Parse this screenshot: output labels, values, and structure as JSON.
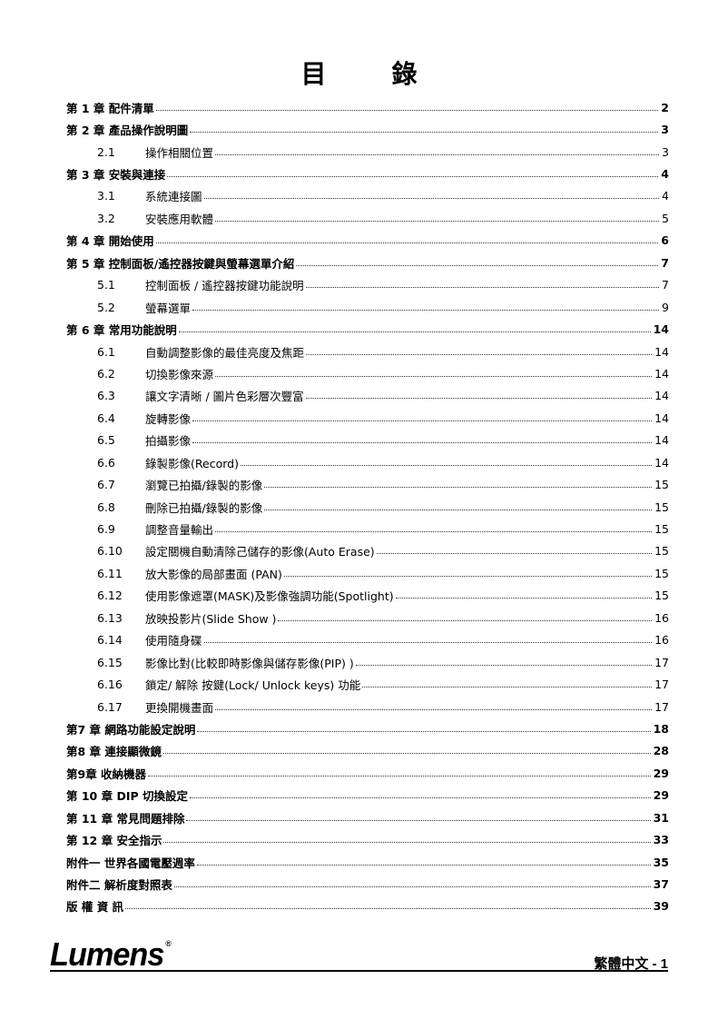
{
  "title": "目　錄",
  "toc": [
    {
      "level": 1,
      "label": "第 1 章 配件清單",
      "page": "2"
    },
    {
      "level": 1,
      "label": "第 2 章 產品操作說明圖",
      "page": "3"
    },
    {
      "level": 2,
      "num": "2.1",
      "label": "操作相關位置",
      "page": "3"
    },
    {
      "level": 1,
      "label": "第 3 章 安裝與連接",
      "page": "4"
    },
    {
      "level": 2,
      "num": "3.1",
      "label": "系統連接圖",
      "page": "4"
    },
    {
      "level": 2,
      "num": "3.2",
      "label": "安裝應用軟體",
      "page": "5"
    },
    {
      "level": 1,
      "label": "第 4 章 開始使用",
      "page": "6"
    },
    {
      "level": 1,
      "label": "第 5 章 控制面板/遙控器按鍵與螢幕選單介紹",
      "page": "7"
    },
    {
      "level": 2,
      "num": "5.1",
      "label": "控制面板 / 遙控器按鍵功能說明",
      "page": "7"
    },
    {
      "level": 2,
      "num": "5.2",
      "label": "螢幕選單",
      "page": "9"
    },
    {
      "level": 1,
      "label": "第 6 章 常用功能說明",
      "page": "14"
    },
    {
      "level": 2,
      "num": "6.1",
      "label": "自動調整影像的最佳亮度及焦距",
      "page": "14"
    },
    {
      "level": 2,
      "num": "6.2",
      "label": "切換影像來源",
      "page": "14"
    },
    {
      "level": 2,
      "num": "6.3",
      "label": "讓文字清晰 / 圖片色彩層次豐富",
      "page": "14"
    },
    {
      "level": 2,
      "num": "6.4",
      "label": "旋轉影像",
      "page": "14"
    },
    {
      "level": 2,
      "num": "6.5",
      "label": "拍攝影像",
      "page": "14"
    },
    {
      "level": 2,
      "num": "6.6",
      "label": "錄製影像(Record)",
      "page": "14"
    },
    {
      "level": 2,
      "num": "6.7",
      "label": "瀏覽已拍攝/錄製的影像",
      "page": "15"
    },
    {
      "level": 2,
      "num": "6.8",
      "label": "刪除已拍攝/錄製的影像",
      "page": "15"
    },
    {
      "level": 2,
      "num": "6.9",
      "label": "調整音量輸出",
      "page": "15"
    },
    {
      "level": 2,
      "num": "6.10",
      "label": "設定關機自動清除己儲存的影像(Auto Erase)",
      "page": "15"
    },
    {
      "level": 2,
      "num": "6.11",
      "label": "放大影像的局部畫面 (PAN)",
      "page": "15"
    },
    {
      "level": 2,
      "num": "6.12",
      "label": "使用影像遮罩(MASK)及影像強調功能(Spotlight)",
      "page": "15"
    },
    {
      "level": 2,
      "num": "6.13",
      "label": "放映投影片(Slide Show )",
      "page": "16"
    },
    {
      "level": 2,
      "num": "6.14",
      "label": "使用隨身碟",
      "page": "16"
    },
    {
      "level": 2,
      "num": "6.15",
      "label": "影像比對(比較即時影像與儲存影像(PIP) )",
      "page": "17"
    },
    {
      "level": 2,
      "num": "6.16",
      "label": "鎖定/ 解除 按鍵(Lock/ Unlock keys) 功能",
      "page": "17"
    },
    {
      "level": 2,
      "num": "6.17",
      "label": "更換開機畫面",
      "page": "17"
    },
    {
      "level": 1,
      "label": "第7 章 網路功能設定說明",
      "page": "18"
    },
    {
      "level": 1,
      "label": "第8 章 連接顯微鏡",
      "page": "28"
    },
    {
      "level": 1,
      "label": "第9章 收納機器",
      "page": "29"
    },
    {
      "level": 1,
      "label": "第 10 章 DIP 切換設定",
      "page": "29"
    },
    {
      "level": 1,
      "label": "第 11 章 常見問題排除",
      "page": "31"
    },
    {
      "level": 1,
      "label": "第 12 章 安全指示",
      "page": "33"
    },
    {
      "level": 1,
      "label": "附件一 世界各國電壓週率",
      "page": "35"
    },
    {
      "level": 1,
      "label": "附件二 解析度對照表",
      "page": "37"
    },
    {
      "level": 1,
      "label": "版 權 資 訊",
      "page": "39"
    }
  ],
  "footer": {
    "logo": "Lumens",
    "page_label": "繁體中文 - 1"
  }
}
